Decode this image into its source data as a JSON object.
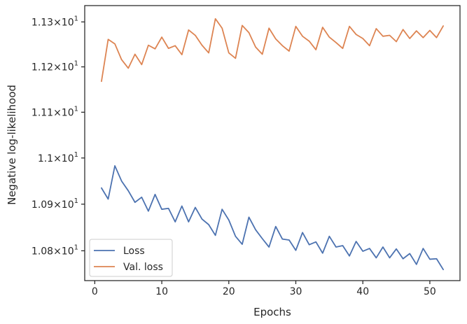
{
  "chart_data": {
    "type": "line",
    "xlabel": "Epochs",
    "ylabel": "Negative log-likelihood",
    "xlim": [
      -1.5,
      54.5
    ],
    "ylim": [
      10.7365,
      11.3365
    ],
    "xticks": [
      0,
      10,
      20,
      30,
      40,
      50
    ],
    "yticks": [
      {
        "value": 10.8,
        "label": "1.08",
        "exp": "1"
      },
      {
        "value": 10.9,
        "label": "1.09",
        "exp": "1"
      },
      {
        "value": 11.0,
        "label": "1.1",
        "exp": "1"
      },
      {
        "value": 11.1,
        "label": "1.11",
        "exp": "1"
      },
      {
        "value": 11.2,
        "label": "1.12",
        "exp": "1"
      },
      {
        "value": 11.3,
        "label": "1.13",
        "exp": "1"
      }
    ],
    "yscale": "log",
    "grid": false,
    "legend_position": "lower-left",
    "x": [
      1,
      2,
      3,
      4,
      5,
      6,
      7,
      8,
      9,
      10,
      11,
      12,
      13,
      14,
      15,
      16,
      17,
      18,
      19,
      20,
      21,
      22,
      23,
      24,
      25,
      26,
      27,
      28,
      29,
      30,
      31,
      32,
      33,
      34,
      35,
      36,
      37,
      38,
      39,
      40,
      41,
      42,
      43,
      44,
      45,
      46,
      47,
      48,
      49,
      50,
      51,
      52
    ],
    "series": [
      {
        "name": "Loss",
        "color": "#4c72b0",
        "values": [
          10.935,
          10.911,
          10.983,
          10.95,
          10.929,
          10.904,
          10.915,
          10.885,
          10.921,
          10.889,
          10.891,
          10.862,
          10.896,
          10.862,
          10.893,
          10.868,
          10.856,
          10.833,
          10.889,
          10.866,
          10.831,
          10.814,
          10.872,
          10.845,
          10.826,
          10.808,
          10.852,
          10.825,
          10.823,
          10.801,
          10.839,
          10.813,
          10.819,
          10.795,
          10.831,
          10.808,
          10.811,
          10.789,
          10.82,
          10.799,
          10.805,
          10.785,
          10.808,
          10.785,
          10.804,
          10.783,
          10.794,
          10.771,
          10.805,
          10.782,
          10.783,
          10.76
        ]
      },
      {
        "name": "Val. loss",
        "color": "#dd8452",
        "values": [
          11.168,
          11.261,
          11.251,
          11.216,
          11.197,
          11.228,
          11.205,
          11.248,
          11.24,
          11.266,
          11.241,
          11.247,
          11.227,
          11.282,
          11.27,
          11.248,
          11.231,
          11.307,
          11.286,
          11.231,
          11.219,
          11.292,
          11.276,
          11.244,
          11.228,
          11.286,
          11.262,
          11.247,
          11.235,
          11.29,
          11.268,
          11.257,
          11.238,
          11.288,
          11.266,
          11.254,
          11.241,
          11.29,
          11.272,
          11.263,
          11.247,
          11.285,
          11.268,
          11.27,
          11.256,
          11.283,
          11.263,
          11.28,
          11.265,
          11.281,
          11.265,
          11.291
        ]
      }
    ]
  }
}
